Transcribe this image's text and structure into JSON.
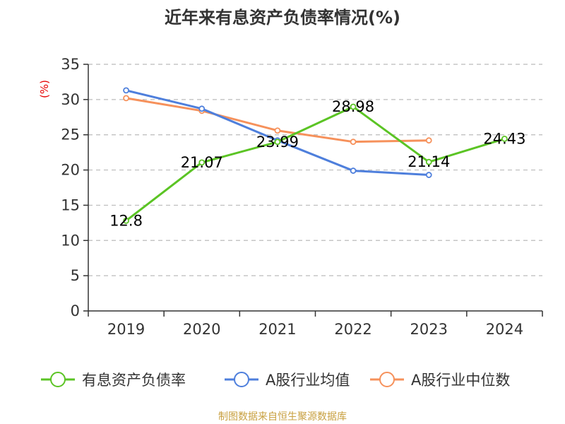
{
  "chart_data": {
    "type": "line",
    "title": "近年来有息资产负债率情况(%)",
    "ylabel": "(%)",
    "xlabel": "",
    "categories": [
      "2019",
      "2020",
      "2021",
      "2022",
      "2023",
      "2024"
    ],
    "ylim": [
      0,
      35
    ],
    "yticks": [
      "0",
      "5",
      "10",
      "15",
      "20",
      "25",
      "30",
      "35"
    ],
    "grid": true,
    "legend_position": "bottom",
    "series": [
      {
        "name": "有息资产负债率",
        "color": "#5bc424",
        "values": [
          12.8,
          21.07,
          23.99,
          28.98,
          21.14,
          24.43
        ],
        "labels": [
          "12.8",
          "21.07",
          "23.99",
          "28.98",
          "21.14",
          "24.43"
        ]
      },
      {
        "name": "A股行业均值",
        "color": "#4e7fdc",
        "values": [
          31.3,
          28.7,
          24.2,
          19.9,
          19.3,
          null
        ]
      },
      {
        "name": "A股行业中位数",
        "color": "#f6915b",
        "values": [
          30.2,
          28.4,
          25.6,
          24.0,
          24.2,
          null
        ]
      }
    ]
  },
  "footer": {
    "source": "制图数据来自恒生聚源数据库"
  },
  "colors": {
    "axis": "#333333",
    "grid": "#bbbbbb",
    "ylabel": "#e60000",
    "source": "#c8a040"
  }
}
